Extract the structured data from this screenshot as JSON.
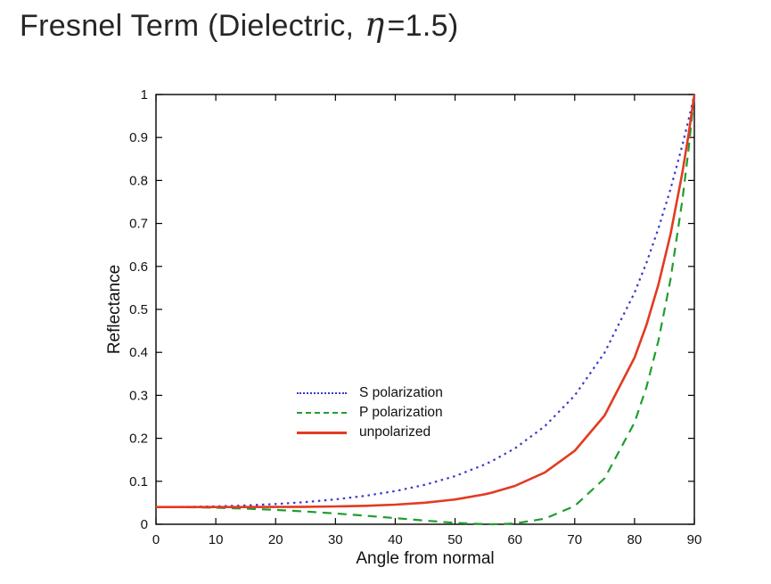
{
  "title": {
    "prefix": "Fresnel Term (Dielectric, ",
    "eta": "η",
    "suffix": "=1.5)"
  },
  "chart_data": {
    "type": "line",
    "title": "Fresnel Term (Dielectric, η=1.5)",
    "xlabel": "Angle from normal",
    "ylabel": "Reflectance",
    "xlim": [
      0,
      90
    ],
    "ylim": [
      0,
      1
    ],
    "grid": false,
    "legend_position": "inside, lower-center",
    "xticks": [
      0,
      10,
      20,
      30,
      40,
      50,
      60,
      70,
      80,
      90
    ],
    "yticks": [
      0,
      0.1,
      0.2,
      0.3,
      0.4,
      0.5,
      0.6,
      0.7,
      0.8,
      0.9,
      1
    ],
    "ytick_labels": [
      "0",
      "0.1",
      "0.2",
      "0.3",
      "0.4",
      "0.5",
      "0.6",
      "0.7",
      "0.8",
      "0.9",
      "1"
    ],
    "x": [
      0,
      5,
      10,
      15,
      20,
      25,
      30,
      35,
      40,
      45,
      50,
      55,
      56.3,
      60,
      65,
      70,
      75,
      80,
      82,
      84,
      86,
      88,
      89,
      90
    ],
    "series": [
      {
        "name": "S polarization",
        "style": "dotted",
        "color": "#3a3acc",
        "values": [
          0.04,
          0.0404,
          0.0417,
          0.0438,
          0.0471,
          0.0516,
          0.0578,
          0.0661,
          0.0772,
          0.092,
          0.112,
          0.1393,
          0.1479,
          0.1766,
          0.2281,
          0.2996,
          0.3994,
          0.5387,
          0.6086,
          0.6884,
          0.7793,
          0.8826,
          0.9395,
          1.0
        ]
      },
      {
        "name": "P polarization",
        "style": "dashed",
        "color": "#1e9e2e",
        "values": [
          0.04,
          0.0396,
          0.0384,
          0.0363,
          0.0334,
          0.0297,
          0.0252,
          0.02,
          0.0143,
          0.0085,
          0.0033,
          0.0002,
          0.0,
          0.0018,
          0.013,
          0.0425,
          0.1068,
          0.2368,
          0.3192,
          0.4272,
          0.5688,
          0.7548,
          0.8689,
          1.0
        ]
      },
      {
        "name": "unpolarized",
        "style": "solid",
        "color": "#e23b22",
        "values": [
          0.04,
          0.04,
          0.04,
          0.0401,
          0.0403,
          0.0407,
          0.0415,
          0.043,
          0.0457,
          0.0502,
          0.0577,
          0.0697,
          0.074,
          0.0892,
          0.1205,
          0.171,
          0.2531,
          0.3877,
          0.4639,
          0.5578,
          0.6741,
          0.8187,
          0.9042,
          1.0
        ]
      }
    ]
  }
}
